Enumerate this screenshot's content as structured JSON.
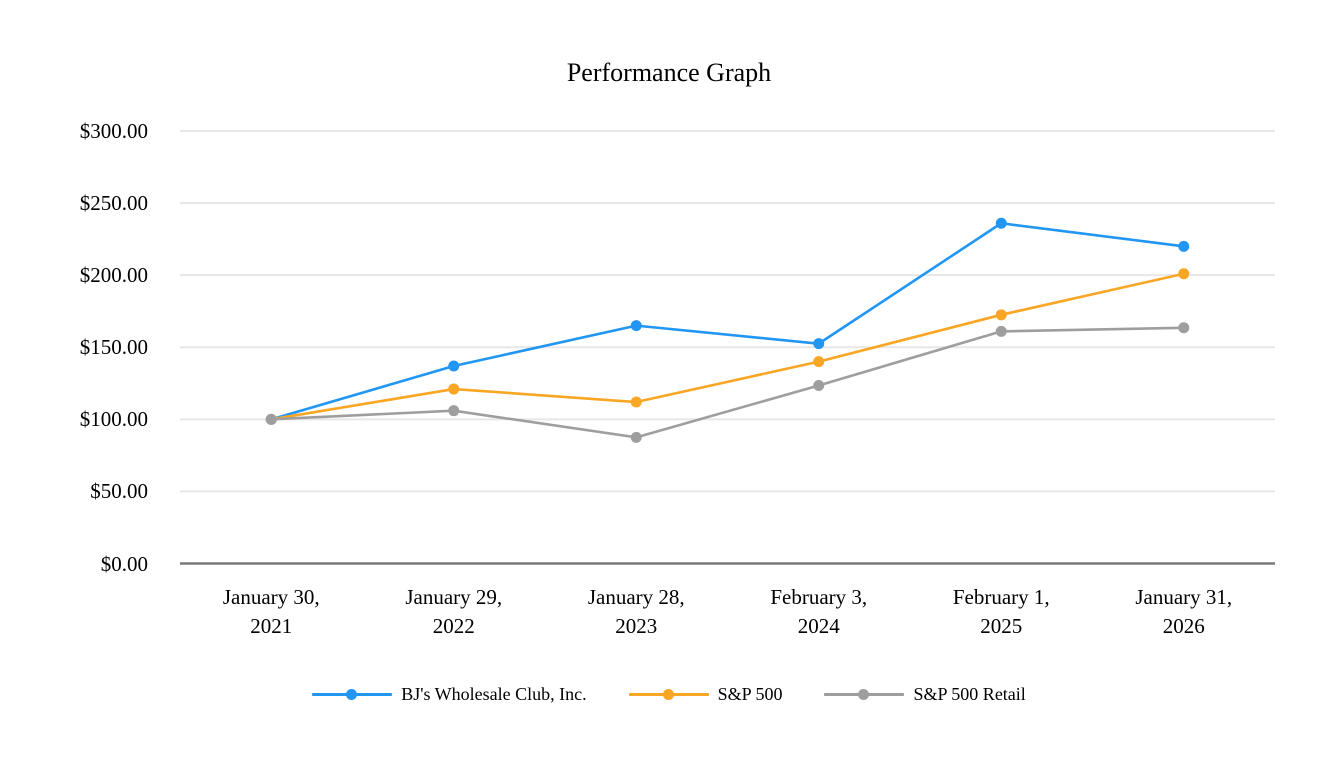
{
  "title": "Performance Graph",
  "chart_data": {
    "type": "line",
    "title": "Performance Graph",
    "categories": [
      "January 30, 2021",
      "January 29, 2022",
      "January 28, 2023",
      "February 3, 2024",
      "February 1, 2025",
      "January 31, 2026"
    ],
    "series": [
      {
        "name": "BJ's Wholesale Club, Inc.",
        "color": "#2196F3",
        "values": [
          100.0,
          137.0,
          165.0,
          152.5,
          236.0,
          220.0
        ]
      },
      {
        "name": "S&P 500",
        "color": "#F9A625",
        "values": [
          100.0,
          121.0,
          112.0,
          140.0,
          172.5,
          201.0
        ]
      },
      {
        "name": "S&P 500 Retail",
        "color": "#9E9E9E",
        "values": [
          100.0,
          106.0,
          87.5,
          123.5,
          161.0,
          163.5
        ]
      }
    ],
    "yticks": [
      0,
      50,
      100,
      150,
      200,
      250,
      300
    ],
    "ytick_labels": [
      "$0.00",
      "$50.00",
      "$100.00",
      "$150.00",
      "$200.00",
      "$250.00",
      "$300.00"
    ],
    "ylim": [
      0,
      300
    ],
    "xlabel": "",
    "ylabel": "",
    "grid": true,
    "legend_position": "bottom",
    "gridline_color": "#E7E7E7",
    "axis_line_color": "#7A7A7A",
    "text_color": "#000000"
  }
}
